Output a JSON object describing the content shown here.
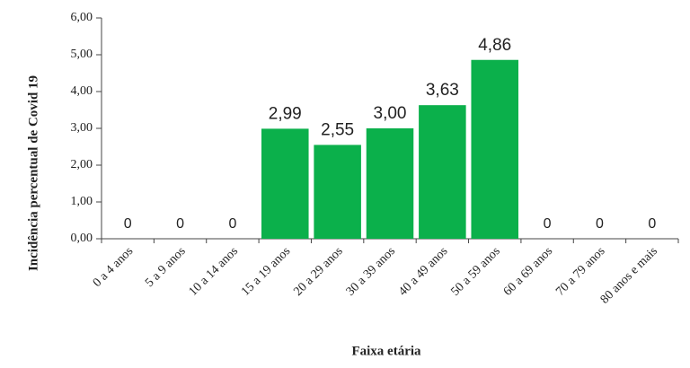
{
  "chart_data": {
    "type": "bar",
    "categories": [
      "0 a 4 anos",
      "5 a 9 anos",
      "10 a 14 anos",
      "15 a 19 anos",
      "20 a 29 anos",
      "30 a 39 anos",
      "40 a 49 anos",
      "50 a 59 anos",
      "60 a 69 anos",
      "70 a 79 anos",
      "80 anos e mais"
    ],
    "values": [
      0,
      0,
      0,
      2.99,
      2.55,
      3.0,
      3.63,
      4.86,
      0,
      0,
      0
    ],
    "value_labels": [
      "0",
      "0",
      "0",
      "2,99",
      "2,55",
      "3,00",
      "3,63",
      "4,86",
      "0",
      "0",
      "0"
    ],
    "color": "#0bb04b",
    "x_label": "Faixa etária",
    "y_label": "Incidência percentual de Covid 19",
    "ylim": [
      0,
      6
    ],
    "yticks": [
      {
        "value": 0,
        "label": "0,00"
      },
      {
        "value": 1,
        "label": "1,00"
      },
      {
        "value": 2,
        "label": "2,00"
      },
      {
        "value": 3,
        "label": "3,00"
      },
      {
        "value": 4,
        "label": "4,00"
      },
      {
        "value": 5,
        "label": "5,00"
      },
      {
        "value": 6,
        "label": "6,00"
      }
    ],
    "grid": false
  }
}
